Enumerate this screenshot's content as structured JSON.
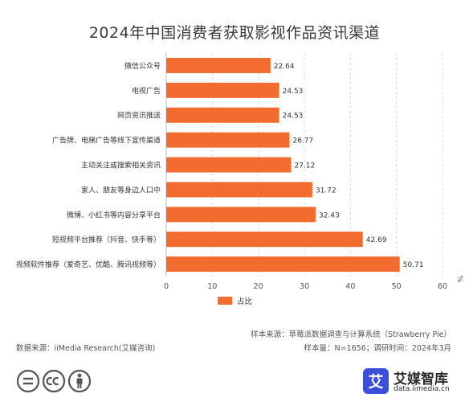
{
  "chart_data": {
    "type": "bar",
    "orientation": "horizontal",
    "title": "2024年中国消费者获取影视作品资讯渠道",
    "categories": [
      "微信公众号",
      "电视广告",
      "网页资讯推送",
      "广告牌、电梯广告等线下宣传渠道",
      "主动关注或搜索相关资讯",
      "家人、朋友等身边人口中",
      "微博、小红书等内容分享平台",
      "短视频平台推荐（抖音、快手等）",
      "视频软件推荐（爱奇艺、优酷、腾讯视频等）"
    ],
    "series": [
      {
        "name": "占比",
        "values": [
          22.64,
          24.53,
          24.53,
          26.77,
          27.12,
          31.72,
          32.43,
          42.69,
          50.71
        ],
        "color": "#F26B2F"
      }
    ],
    "xlim": [
      0,
      60
    ],
    "xticks": [
      0,
      10,
      20,
      30,
      40,
      50,
      60
    ],
    "unit": "%",
    "grid": true,
    "legend": "bottom-left"
  },
  "notes": {
    "sample_source": "样本来源：草莓派数据调查与计算系统（Strawberry Pie）",
    "sample_size": "样本量：N=1656；调研时间：2024年3月",
    "data_source": "数据来源：iiMedia Research(艾媒咨询)"
  },
  "brand": {
    "name": "艾媒智库",
    "url": "data.iimedia.cn",
    "logo_char": "艾"
  },
  "icons": [
    "equals-icon",
    "cc-icon",
    "person-icon"
  ]
}
